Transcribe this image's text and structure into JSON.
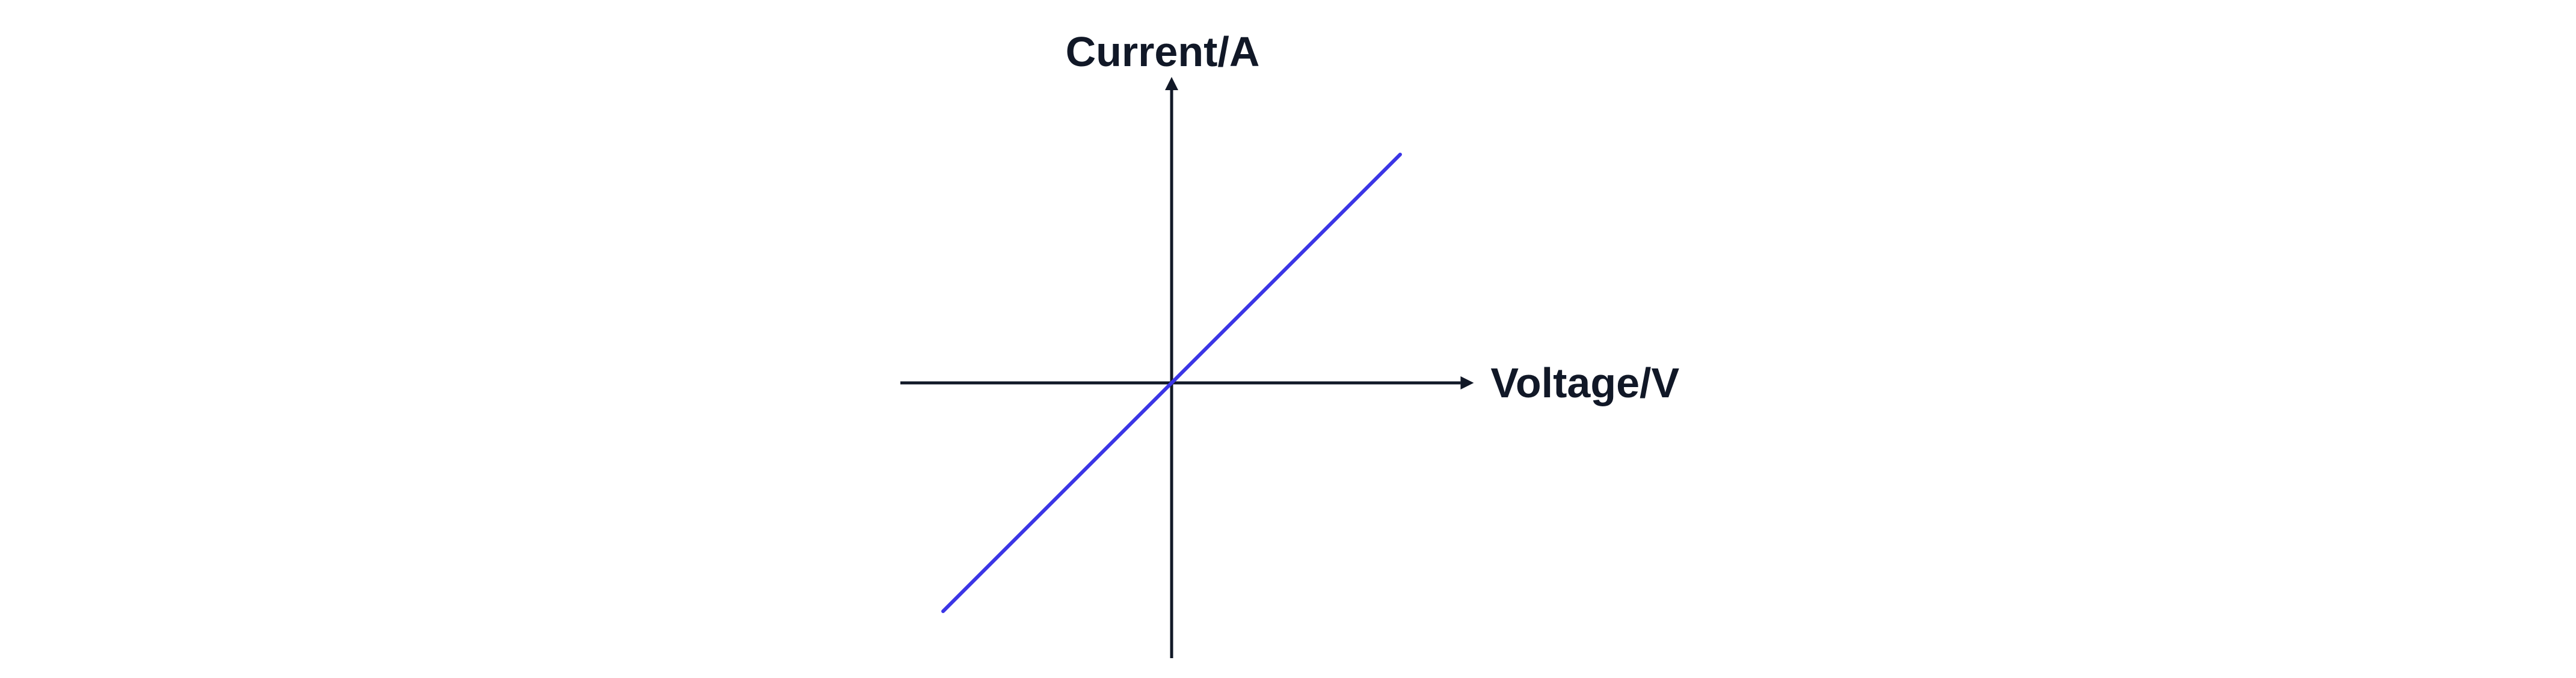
{
  "chart_data": {
    "type": "line",
    "title": "",
    "xlabel": "Voltage/V",
    "ylabel": "Current/A",
    "grid": false,
    "legend": "none",
    "xlim": [
      -1.2,
      1.33
    ],
    "ylim": [
      -1.2,
      1.33
    ],
    "series": [
      {
        "x": [
          -1,
          1
        ],
        "y": [
          -1,
          1
        ],
        "color": "#3b35e6"
      }
    ]
  },
  "colors": {
    "axis": "#111827",
    "text": "#111827",
    "line": "#3b35e6"
  }
}
